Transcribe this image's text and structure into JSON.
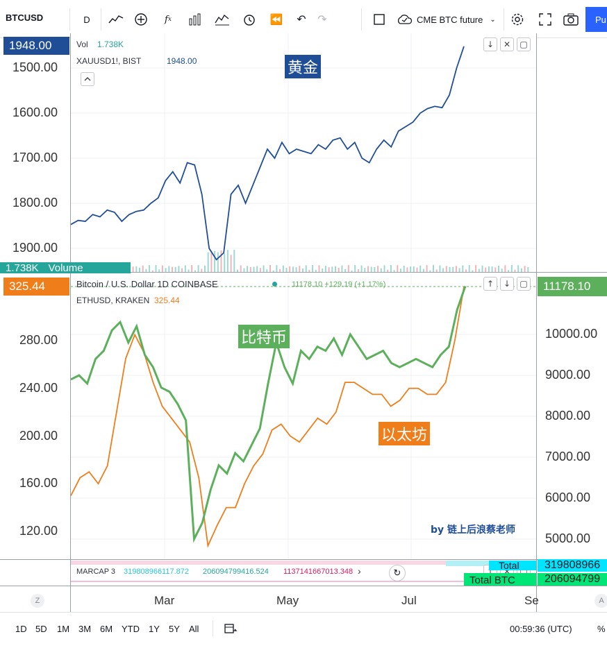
{
  "toolbar": {
    "symbol": "BTCUSD",
    "interval": "D",
    "compare_label": "CME BTC future",
    "publish_label": "Pu"
  },
  "colors": {
    "gold_line": "#1f4e96",
    "btc_line": "#5cb05c",
    "eth_line": "#ef7d1a",
    "teal_tag": "#26a69a",
    "accent": "#2962ff"
  },
  "top_pane": {
    "price_tag": "1948.00",
    "vol_label": "Vol",
    "vol_value": "1.738K",
    "symbol_line": "XAUUSD1!, BIST",
    "symbol_value": "1948.00",
    "annotation": "黄金",
    "volume_tag_value": "1.738K",
    "volume_tag_label": "Volume",
    "y_ticks": [
      "1900.00",
      "1800.00",
      "1700.00",
      "1600.00",
      "1500.00"
    ]
  },
  "mid_pane": {
    "left_tag": "325.44",
    "right_tag": "11178.10",
    "title": "Bitcoin / U.S. Dollar  1D  COINBASE",
    "title_values": "11178.10  +129.19 (+1.17%)",
    "eth_symbol": "ETHUSD, KRAKEN",
    "eth_value": "325.44",
    "btc_annotation": "比特币",
    "eth_annotation": "以太坊",
    "watermark": "by 链上后浪蔡老师",
    "left_ticks": [
      "280.00",
      "240.00",
      "200.00",
      "160.00",
      "120.00"
    ],
    "right_ticks": [
      "10000.00",
      "9000.00",
      "8000.00",
      "7000.00",
      "6000.00",
      "5000.00"
    ]
  },
  "bottom_pane": {
    "legend": "MARCAP 3",
    "v1": "319808966117.872",
    "v2": "206094799416.524",
    "v3": "1137141667013.348",
    "right_tag1": "319808966",
    "right_tag2": "206094799",
    "label_total": "Total",
    "label_total_btc": "Total BTC"
  },
  "x_axis": {
    "left_btn": "Z",
    "right_btn": "A",
    "labels": [
      "Mar",
      "May",
      "Jul",
      "Se"
    ]
  },
  "bottom_bar": {
    "ranges": [
      "1D",
      "5D",
      "1M",
      "3M",
      "6M",
      "YTD",
      "1Y",
      "5Y",
      "All"
    ],
    "clock": "00:59:36 (UTC)",
    "percent": "%"
  },
  "chart_data": [
    {
      "type": "line",
      "series": [
        {
          "name": "XAUUSD1!, BIST",
          "values": [
            1553,
            1562,
            1560,
            1575,
            1570,
            1585,
            1580,
            1560,
            1575,
            1582,
            1585,
            1600,
            1612,
            1650,
            1670,
            1645,
            1690,
            1685,
            1620,
            1500,
            1475,
            1490,
            1620,
            1640,
            1600,
            1640,
            1680,
            1720,
            1700,
            1735,
            1710,
            1720,
            1715,
            1710,
            1730,
            1720,
            1740,
            1745,
            1720,
            1735,
            1700,
            1690,
            1720,
            1740,
            1725,
            1760,
            1770,
            1780,
            1800,
            1810,
            1815,
            1812,
            1840,
            1900,
            1948
          ]
        }
      ],
      "y_axis": {
        "ticks": [
          1500,
          1600,
          1700,
          1800,
          1900
        ]
      }
    },
    {
      "type": "line",
      "series": [
        {
          "name": "Bitcoin / U.S. Dollar",
          "values": [
            8900,
            9000,
            8800,
            9400,
            9600,
            10100,
            10300,
            9800,
            10200,
            9500,
            9200,
            8700,
            8600,
            8300,
            7900,
            5000,
            5400,
            6200,
            6800,
            6600,
            7100,
            6900,
            7300,
            7700,
            8800,
            9800,
            9200,
            8800,
            9600,
            9400,
            9700,
            9600,
            9900,
            9500,
            10000,
            9700,
            9400,
            9500,
            9600,
            9300,
            9200,
            9300,
            9400,
            9300,
            9200,
            9500,
            9700,
            10600,
            11178
          ]
        },
        {
          "name": "ETHUSD, KRAKEN",
          "values": [
            150,
            165,
            170,
            160,
            175,
            220,
            265,
            285,
            270,
            245,
            225,
            215,
            205,
            195,
            165,
            108,
            125,
            140,
            140,
            160,
            175,
            185,
            205,
            210,
            200,
            195,
            205,
            215,
            210,
            220,
            245,
            245,
            240,
            235,
            235,
            225,
            230,
            240,
            240,
            235,
            235,
            245,
            280,
            325
          ]
        }
      ],
      "left_axis": {
        "ticks": [
          120,
          160,
          200,
          240,
          280
        ]
      },
      "right_axis": {
        "ticks": [
          5000,
          6000,
          7000,
          8000,
          9000,
          10000
        ]
      }
    }
  ]
}
